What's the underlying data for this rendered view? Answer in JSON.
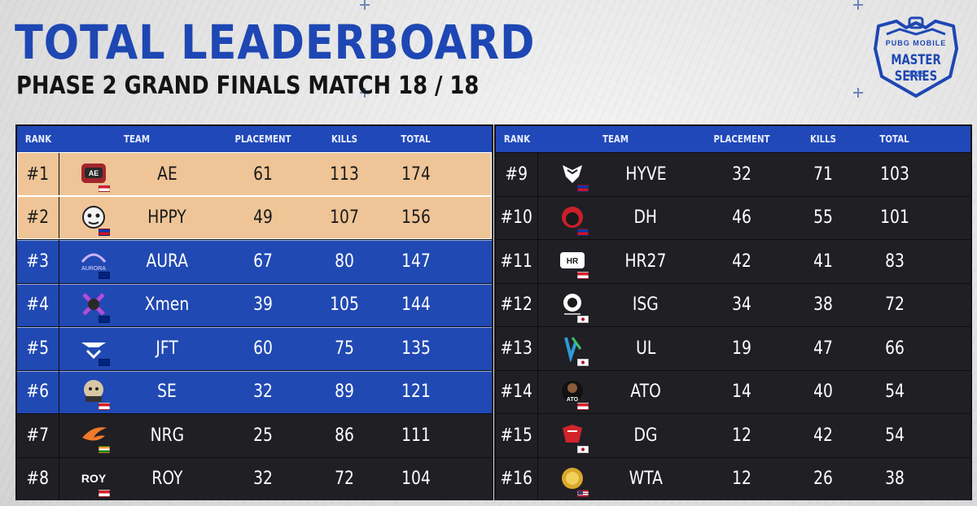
{
  "header": {
    "title": "TOTAL LEADERBOARD",
    "subtitle": "PHASE 2 GRAND FINALS MATCH 18 / 18"
  },
  "logo": {
    "brand": "PUBG MOBILE",
    "series": "MASTER SERIES",
    "year": "2025"
  },
  "columns": {
    "rank": "RANK",
    "team": "TEAM",
    "placement": "PLACEMENT",
    "kills": "KILLS",
    "total": "TOTAL"
  },
  "colors": {
    "accent_blue": "#2149b3",
    "gold_row": "#efc597",
    "dark_row": "#1f1f24"
  },
  "left_table": [
    {
      "rank": "#1",
      "team": "AE",
      "placement": "61",
      "kills": "113",
      "total": "174",
      "tier": "gold",
      "flag": "indonesia",
      "logo_icon": "ae-team-logo"
    },
    {
      "rank": "#2",
      "team": "HPPY",
      "placement": "49",
      "kills": "107",
      "total": "156",
      "tier": "gold",
      "flag": "philippines",
      "logo_icon": "hppy-team-logo"
    },
    {
      "rank": "#3",
      "team": "AURA",
      "placement": "67",
      "kills": "80",
      "total": "147",
      "tier": "blue",
      "flag": "australia",
      "logo_icon": "aura-team-logo"
    },
    {
      "rank": "#4",
      "team": "Xmen",
      "placement": "39",
      "kills": "105",
      "total": "144",
      "tier": "blue",
      "flag": "australia",
      "logo_icon": "xmen-team-logo"
    },
    {
      "rank": "#5",
      "team": "JFT",
      "placement": "60",
      "kills": "75",
      "total": "135",
      "tier": "blue",
      "flag": "australia",
      "logo_icon": "jft-team-logo"
    },
    {
      "rank": "#6",
      "team": "SE",
      "placement": "32",
      "kills": "89",
      "total": "121",
      "tier": "blue",
      "flag": "indonesia",
      "logo_icon": "se-team-logo"
    },
    {
      "rank": "#7",
      "team": "NRG",
      "placement": "25",
      "kills": "86",
      "total": "111",
      "tier": "dark",
      "flag": "india",
      "logo_icon": "nrg-team-logo"
    },
    {
      "rank": "#8",
      "team": "ROY",
      "placement": "32",
      "kills": "72",
      "total": "104",
      "tier": "dark",
      "flag": "indonesia",
      "logo_icon": "roy-team-logo"
    }
  ],
  "right_table": [
    {
      "rank": "#9",
      "team": "HYVE",
      "placement": "32",
      "kills": "71",
      "total": "103",
      "tier": "dark",
      "flag": "philippines",
      "logo_icon": "hyve-team-logo"
    },
    {
      "rank": "#10",
      "team": "DH",
      "placement": "46",
      "kills": "55",
      "total": "101",
      "tier": "dark",
      "flag": "philippines",
      "logo_icon": "dh-team-logo"
    },
    {
      "rank": "#11",
      "team": "HR27",
      "placement": "42",
      "kills": "41",
      "total": "83",
      "tier": "dark",
      "flag": "indonesia",
      "logo_icon": "hr27-team-logo"
    },
    {
      "rank": "#12",
      "team": "ISG",
      "placement": "34",
      "kills": "38",
      "total": "72",
      "tier": "dark",
      "flag": "japan",
      "logo_icon": "isg-team-logo"
    },
    {
      "rank": "#13",
      "team": "UL",
      "placement": "19",
      "kills": "47",
      "total": "66",
      "tier": "dark",
      "flag": "japan",
      "logo_icon": "ul-team-logo"
    },
    {
      "rank": "#14",
      "team": "ATO",
      "placement": "14",
      "kills": "40",
      "total": "54",
      "tier": "dark",
      "flag": "indonesia",
      "logo_icon": "ato-team-logo"
    },
    {
      "rank": "#15",
      "team": "DG",
      "placement": "12",
      "kills": "42",
      "total": "54",
      "tier": "dark",
      "flag": "japan",
      "logo_icon": "dg-team-logo"
    },
    {
      "rank": "#16",
      "team": "WTA",
      "placement": "12",
      "kills": "26",
      "total": "38",
      "tier": "dark",
      "flag": "usa",
      "logo_icon": "wta-team-logo"
    }
  ]
}
